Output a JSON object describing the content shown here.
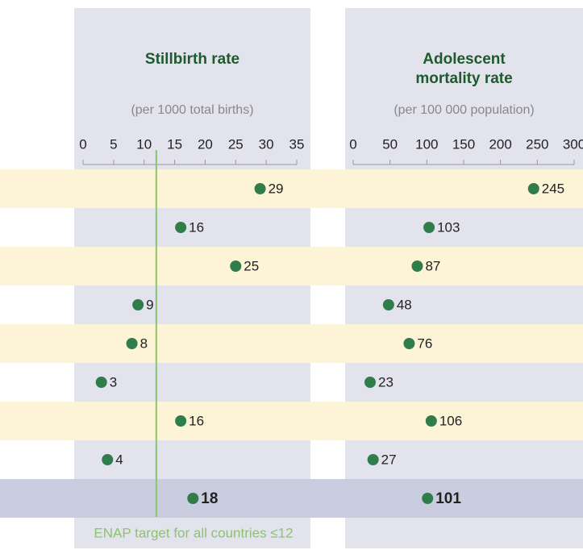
{
  "chart_data": [
    {
      "type": "dot",
      "title": "Stillbirth rate",
      "subtitle": "(per 1000 total births)",
      "categories": [
        null,
        null,
        null,
        null,
        null,
        null,
        null,
        null,
        null
      ],
      "values": [
        29,
        16,
        25,
        9,
        8,
        3,
        16,
        4,
        18
      ],
      "xlim": [
        0,
        35
      ],
      "xticks": [
        0,
        5,
        10,
        15,
        20,
        25,
        30,
        35
      ],
      "color": "#2e7d4a",
      "highlight": 8,
      "target": {
        "value": 12,
        "label": "ENAP target for all countries ≤12",
        "color": "#8cc46a"
      }
    },
    {
      "type": "dot",
      "title": "Adolescent mortality rate",
      "subtitle": "(per 100 000 population)",
      "categories": [
        null,
        null,
        null,
        null,
        null,
        null,
        null,
        null,
        null
      ],
      "values": [
        245,
        103,
        87,
        48,
        76,
        23,
        106,
        27,
        101
      ],
      "xlim": [
        0,
        300
      ],
      "xticks": [
        0,
        50,
        100,
        150,
        200,
        250,
        300
      ],
      "color": "#2e7d4a",
      "highlight": 8
    }
  ]
}
